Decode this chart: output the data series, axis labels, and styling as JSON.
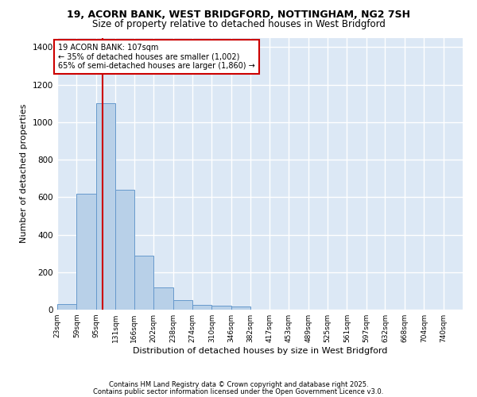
{
  "title_line1": "19, ACORN BANK, WEST BRIDGFORD, NOTTINGHAM, NG2 7SH",
  "title_line2": "Size of property relative to detached houses in West Bridgford",
  "xlabel": "Distribution of detached houses by size in West Bridgford",
  "ylabel": "Number of detached properties",
  "footnote_line1": "Contains HM Land Registry data © Crown copyright and database right 2025.",
  "footnote_line2": "Contains public sector information licensed under the Open Government Licence v3.0.",
  "bin_edges": [
    23,
    59,
    95,
    131,
    166,
    202,
    238,
    274,
    310,
    346,
    382,
    417,
    453,
    489,
    525,
    561,
    597,
    632,
    668,
    704,
    740
  ],
  "bar_heights": [
    30,
    620,
    1100,
    640,
    290,
    120,
    50,
    25,
    20,
    15,
    0,
    0,
    0,
    0,
    0,
    0,
    0,
    0,
    0,
    0
  ],
  "bar_color": "#b8d0e8",
  "bar_edgecolor": "#6699cc",
  "fig_bg_color": "#ffffff",
  "plot_bg_color": "#dce8f5",
  "grid_color": "#ffffff",
  "vline_x": 107,
  "vline_color": "#cc0000",
  "annotation_title": "19 ACORN BANK: 107sqm",
  "annotation_line2": "← 35% of detached houses are smaller (1,002)",
  "annotation_line3": "65% of semi-detached houses are larger (1,860) →",
  "annotation_box_edgecolor": "#cc0000",
  "annotation_box_facecolor": "#ffffff",
  "ylim": [
    0,
    1450
  ],
  "yticks": [
    0,
    200,
    400,
    600,
    800,
    1000,
    1200,
    1400
  ],
  "tick_labels": [
    "23sqm",
    "59sqm",
    "95sqm",
    "131sqm",
    "166sqm",
    "202sqm",
    "238sqm",
    "274sqm",
    "310sqm",
    "346sqm",
    "382sqm",
    "417sqm",
    "453sqm",
    "489sqm",
    "525sqm",
    "561sqm",
    "597sqm",
    "632sqm",
    "668sqm",
    "704sqm",
    "740sqm"
  ],
  "title_fontsize": 9,
  "subtitle_fontsize": 8.5,
  "ylabel_fontsize": 8,
  "xlabel_fontsize": 8,
  "tick_fontsize": 6.5,
  "footnote_fontsize": 6
}
